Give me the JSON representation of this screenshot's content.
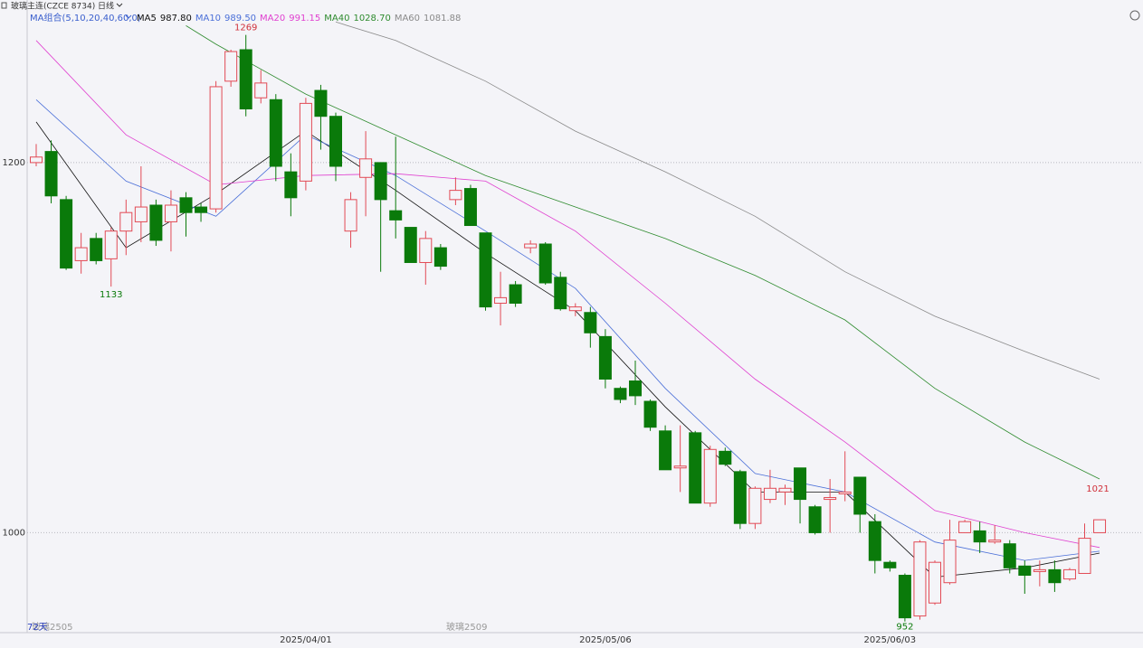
{
  "chart_data": {
    "type": "candlestick",
    "title": "玻璃主连(CZCE 8734)",
    "period": "日线",
    "indicator": "MA组合(5,10,20,40,60,0)",
    "categories": [
      null,
      null,
      null,
      null,
      null,
      null,
      null,
      null,
      null,
      null,
      null,
      null,
      null,
      null,
      null,
      null,
      null,
      null,
      "2025/04/01",
      null,
      null,
      null,
      null,
      null,
      null,
      null,
      null,
      null,
      null,
      null,
      null,
      null,
      null,
      null,
      null,
      null,
      null,
      null,
      "2025/05/06",
      null,
      null,
      null,
      null,
      null,
      null,
      null,
      null,
      null,
      null,
      null,
      null,
      null,
      null,
      null,
      null,
      null,
      null,
      "2025/06/03",
      null,
      null,
      null,
      null,
      null,
      null,
      null,
      null,
      null,
      null,
      null,
      null,
      null,
      null
    ],
    "open": [
      1200,
      1206,
      1180,
      1147,
      1159,
      1148,
      1163,
      1168,
      1177,
      1168,
      1181,
      1176,
      1175,
      1244,
      1261,
      1235,
      1234,
      1195,
      1190,
      1239,
      1225,
      1163,
      1192,
      1200,
      1174,
      1165,
      1146,
      1154,
      1180,
      1186,
      1162,
      1124,
      1134,
      1154,
      1156,
      1138,
      1120,
      1119,
      1106,
      1078,
      1082,
      1071,
      1055,
      1035,
      1054,
      1016,
      1044,
      1033,
      1005,
      1018,
      1022,
      1035,
      1014,
      1018,
      1021,
      1030,
      1006,
      984,
      977,
      955,
      962,
      973,
      1000,
      1001,
      995,
      994,
      982,
      979,
      980,
      975,
      978,
      1000
    ],
    "high": [
      1210,
      1212,
      1182,
      1162,
      1162,
      1165,
      1180,
      1198,
      1180,
      1185,
      1184,
      1178,
      1244,
      1261,
      1269,
      1250,
      1237,
      1205,
      1235,
      1242,
      1227,
      1184,
      1217,
      1200,
      1214,
      1165,
      1163,
      1156,
      1192,
      1188,
      1162,
      1141,
      1136,
      1158,
      1157,
      1141,
      1124,
      1122,
      1110,
      1079,
      1093,
      1072,
      1058,
      1058,
      1055,
      1047,
      1046,
      1034,
      1025,
      1034,
      1026,
      1035,
      1015,
      1029,
      1044,
      1030,
      1010,
      985,
      978,
      996,
      985,
      1007,
      1007,
      1006,
      1004,
      996,
      985,
      985,
      985,
      981,
      1005,
      1007
    ],
    "low": [
      1198,
      1178,
      1142,
      1140,
      1145,
      1133,
      1150,
      1157,
      1155,
      1152,
      1160,
      1168,
      1173,
      1241,
      1225,
      1232,
      1190,
      1171,
      1185,
      1207,
      1190,
      1154,
      1171,
      1141,
      1159,
      1146,
      1134,
      1142,
      1177,
      1166,
      1120,
      1112,
      1122,
      1151,
      1134,
      1120,
      1117,
      1100,
      1078,
      1070,
      1069,
      1055,
      1034,
      1022,
      1016,
      1014,
      1036,
      1002,
      1002,
      1016,
      1015,
      1005,
      999,
      1000,
      1017,
      1000,
      978,
      979,
      952,
      953,
      961,
      972,
      1000,
      989,
      994,
      978,
      967,
      971,
      968,
      974,
      978,
      1000
    ],
    "close": [
      1203,
      1182,
      1143,
      1154,
      1147,
      1163,
      1173,
      1176,
      1158,
      1177,
      1173,
      1173,
      1241,
      1260,
      1229,
      1243,
      1198,
      1181,
      1232,
      1225,
      1198,
      1180,
      1202,
      1180,
      1169,
      1146,
      1159,
      1144,
      1185,
      1166,
      1122,
      1127,
      1124,
      1156,
      1135,
      1121,
      1122,
      1108,
      1083,
      1072,
      1074,
      1057,
      1034,
      1036,
      1016,
      1045,
      1037,
      1005,
      1024,
      1024,
      1024,
      1018,
      1000,
      1019,
      1022,
      1010,
      985,
      981,
      954,
      995,
      984,
      996,
      1006,
      995,
      996,
      981,
      977,
      980,
      973,
      980,
      997,
      1007
    ],
    "up_color": "#e24a55",
    "down_color": "#0a7a0a",
    "ma": [
      {
        "name": "MA5",
        "legend_value": "987.80",
        "color": "#111111",
        "x": [
          0,
          6,
          12,
          18,
          24,
          30,
          36,
          42,
          48,
          54,
          60,
          66,
          71
        ],
        "values": [
          1222,
          1154,
          1183,
          1217,
          1185,
          1151,
          1120,
          1068,
          1022,
          1022,
          976,
          981,
          989
        ]
      },
      {
        "name": "MA10",
        "legend_value": "989.50",
        "color": "#4a6fd8",
        "x": [
          0,
          6,
          12,
          18,
          24,
          30,
          36,
          42,
          48,
          54,
          60,
          66,
          71
        ],
        "values": [
          1234,
          1190,
          1171,
          1215,
          1193,
          1163,
          1132,
          1078,
          1032,
          1022,
          995,
          985,
          990
        ]
      },
      {
        "name": "MA20",
        "legend_value": "991.15",
        "color": "#e040d0",
        "x": [
          0,
          6,
          12,
          18,
          24,
          30,
          36,
          42,
          48,
          54,
          60,
          66,
          71
        ],
        "values": [
          1266,
          1215,
          1188,
          1193,
          1194,
          1190,
          1163,
          1124,
          1083,
          1049,
          1012,
          1000,
          992
        ]
      },
      {
        "name": "MA40",
        "legend_value": "1028.70",
        "color": "#2e8b2e",
        "x": [
          10,
          12,
          18,
          24,
          30,
          36,
          42,
          48,
          54,
          60,
          66,
          71
        ],
        "values": [
          1274,
          1264,
          1237,
          1215,
          1193,
          1176,
          1159,
          1139,
          1115,
          1078,
          1049,
          1029
        ]
      },
      {
        "name": "MA60",
        "legend_value": "1081.88",
        "color": "#8a8a8a",
        "x": [
          20,
          24,
          30,
          36,
          42,
          48,
          54,
          60,
          66,
          71
        ],
        "values": [
          1276,
          1266,
          1244,
          1217,
          1195,
          1171,
          1141,
          1117,
          1098,
          1083
        ]
      }
    ],
    "ylim": [
      946,
      1282
    ],
    "yticks": [
      1000,
      1200
    ],
    "grid": true,
    "annotations": {
      "high": "1269",
      "low_left": "1133",
      "low": "952",
      "right": "1021"
    },
    "contract_labels": [
      "玻璃2505",
      "玻璃2509"
    ],
    "day_count": "72天"
  }
}
